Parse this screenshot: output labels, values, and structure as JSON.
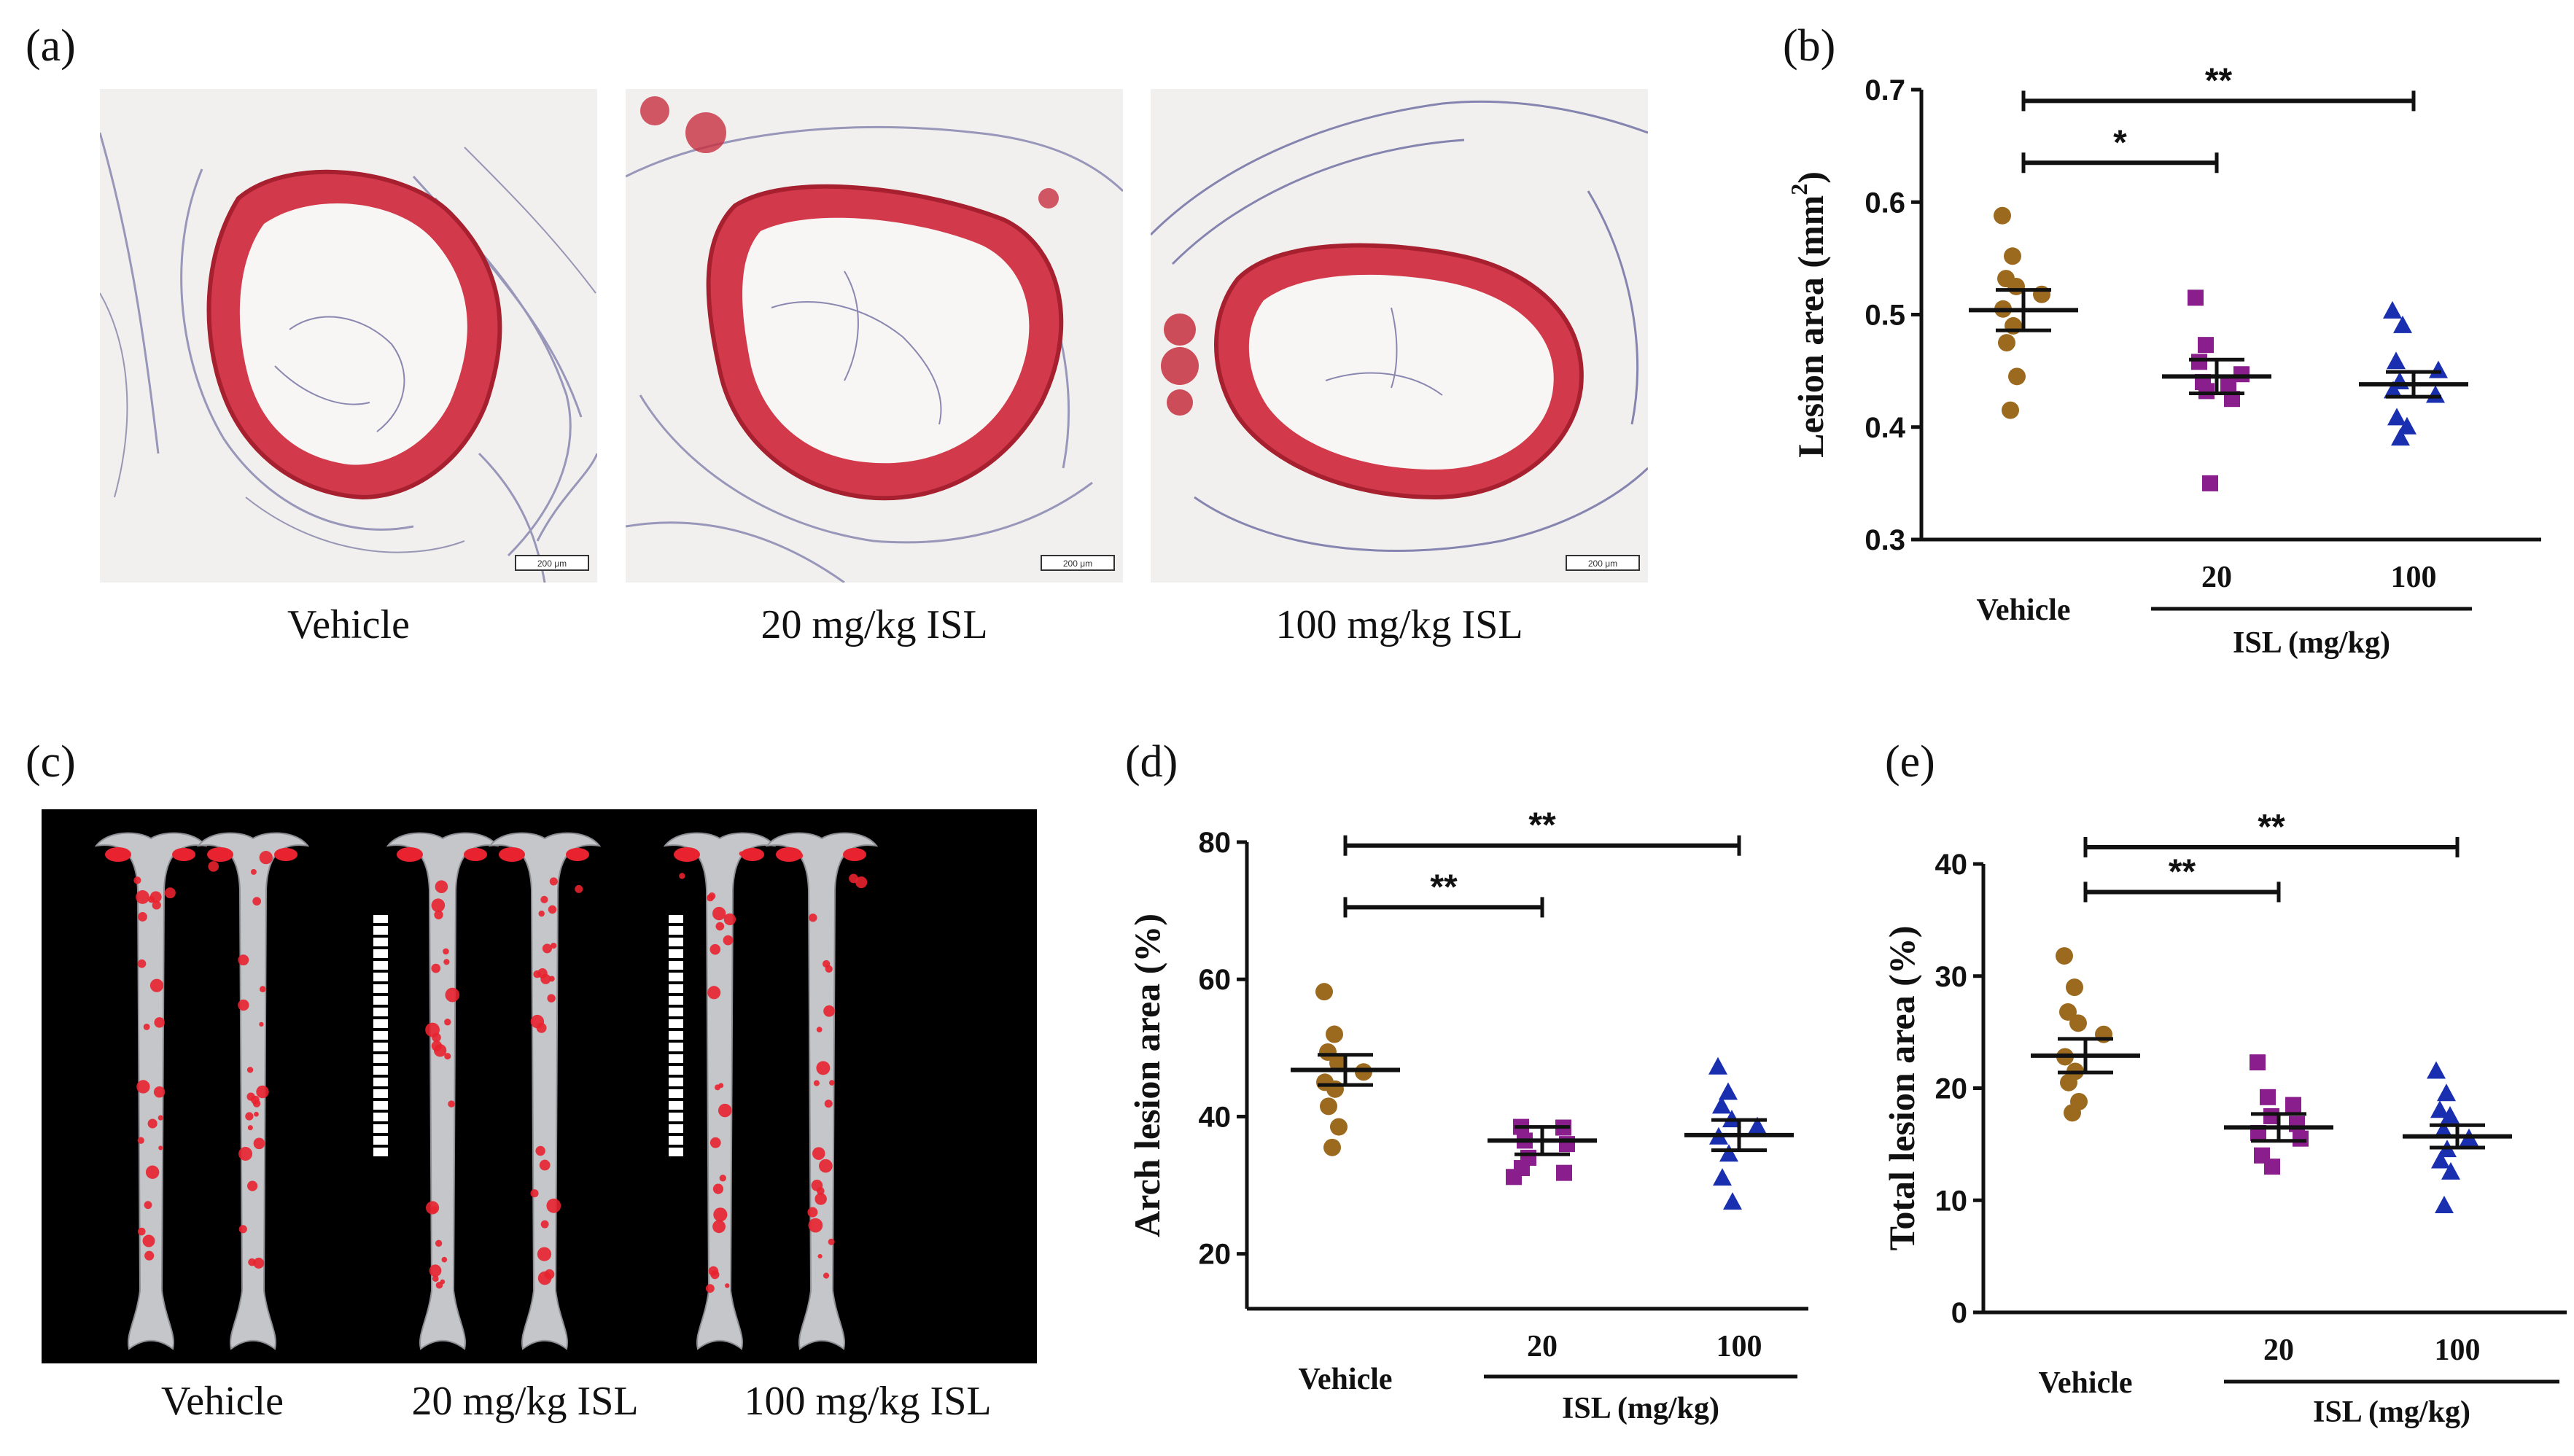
{
  "panel_labels": {
    "a": "(a)",
    "b": "(b)",
    "c": "(c)",
    "d": "(d)",
    "e": "(e)"
  },
  "image_captions_a": [
    "Vehicle",
    "20 mg/kg ISL",
    "100 mg/kg ISL"
  ],
  "image_captions_c": [
    "Vehicle",
    "20 mg/kg ISL",
    "100 mg/kg ISL"
  ],
  "scale_bar_text": "200 μm",
  "colors": {
    "vehicle": "#9c6a1e",
    "isl20": "#8a1e8c",
    "isl100": "#1a2fb0",
    "lesion_red": "#d0283c",
    "bg_black": "#000000"
  },
  "chart_data": [
    {
      "id": "b",
      "type": "scatter",
      "ylabel": "Lesion area (mm",
      "ylabel_sup": "2",
      "ylabel_close": ")",
      "ylim": [
        0.3,
        0.7
      ],
      "yticks": [
        0.3,
        0.4,
        0.5,
        0.6,
        0.7
      ],
      "ytick_labels": [
        "0.3",
        "0.4",
        "0.5",
        "0.6",
        "0.7"
      ],
      "group_axis_label": "ISL (mg/kg)",
      "categories": [
        "Vehicle",
        "20",
        "100"
      ],
      "series": [
        {
          "name": "Vehicle",
          "marker": "circle",
          "color": "#9c6a1e",
          "mean": 0.504,
          "sem": 0.018,
          "values": [
            0.588,
            0.552,
            0.532,
            0.525,
            0.518,
            0.505,
            0.49,
            0.475,
            0.445,
            0.415
          ]
        },
        {
          "name": "20",
          "marker": "square",
          "color": "#8a1e8c",
          "mean": 0.445,
          "sem": 0.015,
          "values": [
            0.515,
            0.473,
            0.458,
            0.447,
            0.44,
            0.437,
            0.432,
            0.425,
            0.35
          ]
        },
        {
          "name": "100",
          "marker": "triangle",
          "color": "#1a2fb0",
          "mean": 0.438,
          "sem": 0.011,
          "values": [
            0.503,
            0.49,
            0.458,
            0.45,
            0.44,
            0.432,
            0.428,
            0.408,
            0.4,
            0.39
          ]
        }
      ],
      "significance": [
        {
          "from": "Vehicle",
          "to": "20",
          "label": "*",
          "y": 0.635
        },
        {
          "from": "Vehicle",
          "to": "100",
          "label": "**",
          "y": 0.69
        }
      ]
    },
    {
      "id": "d",
      "type": "scatter",
      "ylabel": "Arch lesion area (%)",
      "ylim": [
        12,
        80
      ],
      "yticks": [
        20,
        40,
        60,
        80
      ],
      "ytick_labels": [
        "20",
        "40",
        "60",
        "80"
      ],
      "group_axis_label": "ISL (mg/kg)",
      "categories": [
        "Vehicle",
        "20",
        "100"
      ],
      "series": [
        {
          "name": "Vehicle",
          "marker": "circle",
          "color": "#9c6a1e",
          "mean": 46.8,
          "sem": 2.2,
          "values": [
            58.2,
            52,
            49.4,
            47.8,
            46.5,
            45,
            44,
            41.5,
            38.5,
            35.5
          ]
        },
        {
          "name": "20",
          "marker": "square",
          "color": "#8a1e8c",
          "mean": 36.5,
          "sem": 2.0,
          "values": [
            38.5,
            38.4,
            36.5,
            36,
            34,
            32.5,
            31.8,
            31.2
          ]
        },
        {
          "name": "100",
          "marker": "triangle",
          "color": "#1a2fb0",
          "mean": 37.3,
          "sem": 2.2,
          "values": [
            47.2,
            43.5,
            41.5,
            39.5,
            38.5,
            37,
            34.5,
            31,
            27.5
          ]
        }
      ],
      "significance": [
        {
          "from": "Vehicle",
          "to": "20",
          "label": "**",
          "y": 70.5
        },
        {
          "from": "Vehicle",
          "to": "100",
          "label": "**",
          "y": 79.5
        }
      ]
    },
    {
      "id": "e",
      "type": "scatter",
      "ylabel": "Total lesion area (%)",
      "ylim": [
        0,
        40
      ],
      "yticks": [
        0,
        10,
        20,
        30,
        40
      ],
      "ytick_labels": [
        "0",
        "10",
        "20",
        "30",
        "40"
      ],
      "group_axis_label": "ISL (mg/kg)",
      "categories": [
        "Vehicle",
        "20",
        "100"
      ],
      "series": [
        {
          "name": "Vehicle",
          "marker": "circle",
          "color": "#9c6a1e",
          "mean": 22.9,
          "sem": 1.5,
          "values": [
            31.8,
            29,
            26.8,
            25.8,
            24.8,
            22.8,
            21.5,
            20.5,
            18.8,
            17.8
          ]
        },
        {
          "name": "20",
          "marker": "square",
          "color": "#8a1e8c",
          "mean": 16.5,
          "sem": 1.2,
          "values": [
            22.3,
            19.2,
            18.5,
            17.5,
            16.8,
            16,
            15.5,
            14,
            13
          ]
        },
        {
          "name": "100",
          "marker": "triangle",
          "color": "#1a2fb0",
          "mean": 15.7,
          "sem": 1.0,
          "values": [
            21.5,
            19.5,
            18,
            17.5,
            16.2,
            15.5,
            14.5,
            13.5,
            12.5,
            9.5
          ]
        }
      ],
      "significance": [
        {
          "from": "Vehicle",
          "to": "20",
          "label": "**",
          "y": 37.5
        },
        {
          "from": "Vehicle",
          "to": "100",
          "label": "**",
          "y": 41.5
        }
      ]
    }
  ]
}
